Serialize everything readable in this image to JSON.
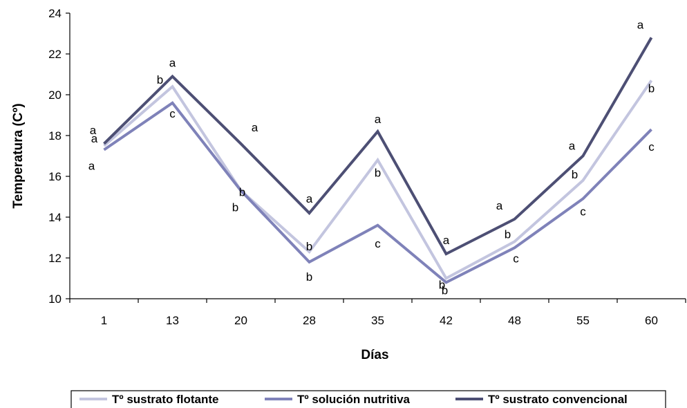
{
  "chart_data": {
    "type": "line",
    "title": "",
    "xlabel": "Días",
    "ylabel": "Temperatura (Cº)",
    "categories": [
      "1",
      "13",
      "20",
      "28",
      "35",
      "42",
      "48",
      "55",
      "60"
    ],
    "ylim": [
      10,
      24
    ],
    "yticks": [
      "10",
      "12",
      "14",
      "16",
      "18",
      "20",
      "22",
      "24"
    ],
    "grid": false,
    "legend_position": "bottom",
    "series": [
      {
        "name": "Tº sustrato flotante",
        "color": "#c3c5df",
        "values": [
          17.5,
          20.4,
          15.3,
          12.3,
          16.8,
          11.0,
          12.8,
          15.8,
          20.7
        ],
        "labels": [
          "a",
          "b",
          "b",
          "b",
          "b",
          "b",
          "b",
          "b",
          "b"
        ]
      },
      {
        "name": "Tº solución nutritiva",
        "color": "#7f82b9",
        "values": [
          17.3,
          19.6,
          15.3,
          11.8,
          13.6,
          10.8,
          12.5,
          14.9,
          18.3
        ],
        "labels": [
          "a",
          "c",
          "b",
          "b",
          "c",
          "b",
          "c",
          "c",
          "c"
        ]
      },
      {
        "name": "Tº sustrato convencional",
        "color": "#4d4f74",
        "values": [
          17.6,
          20.9,
          17.6,
          14.2,
          18.2,
          12.2,
          13.9,
          17.0,
          22.8
        ],
        "labels": [
          "a",
          "a",
          "a",
          "a",
          "a",
          "a",
          "a",
          "a",
          "a"
        ]
      }
    ]
  }
}
